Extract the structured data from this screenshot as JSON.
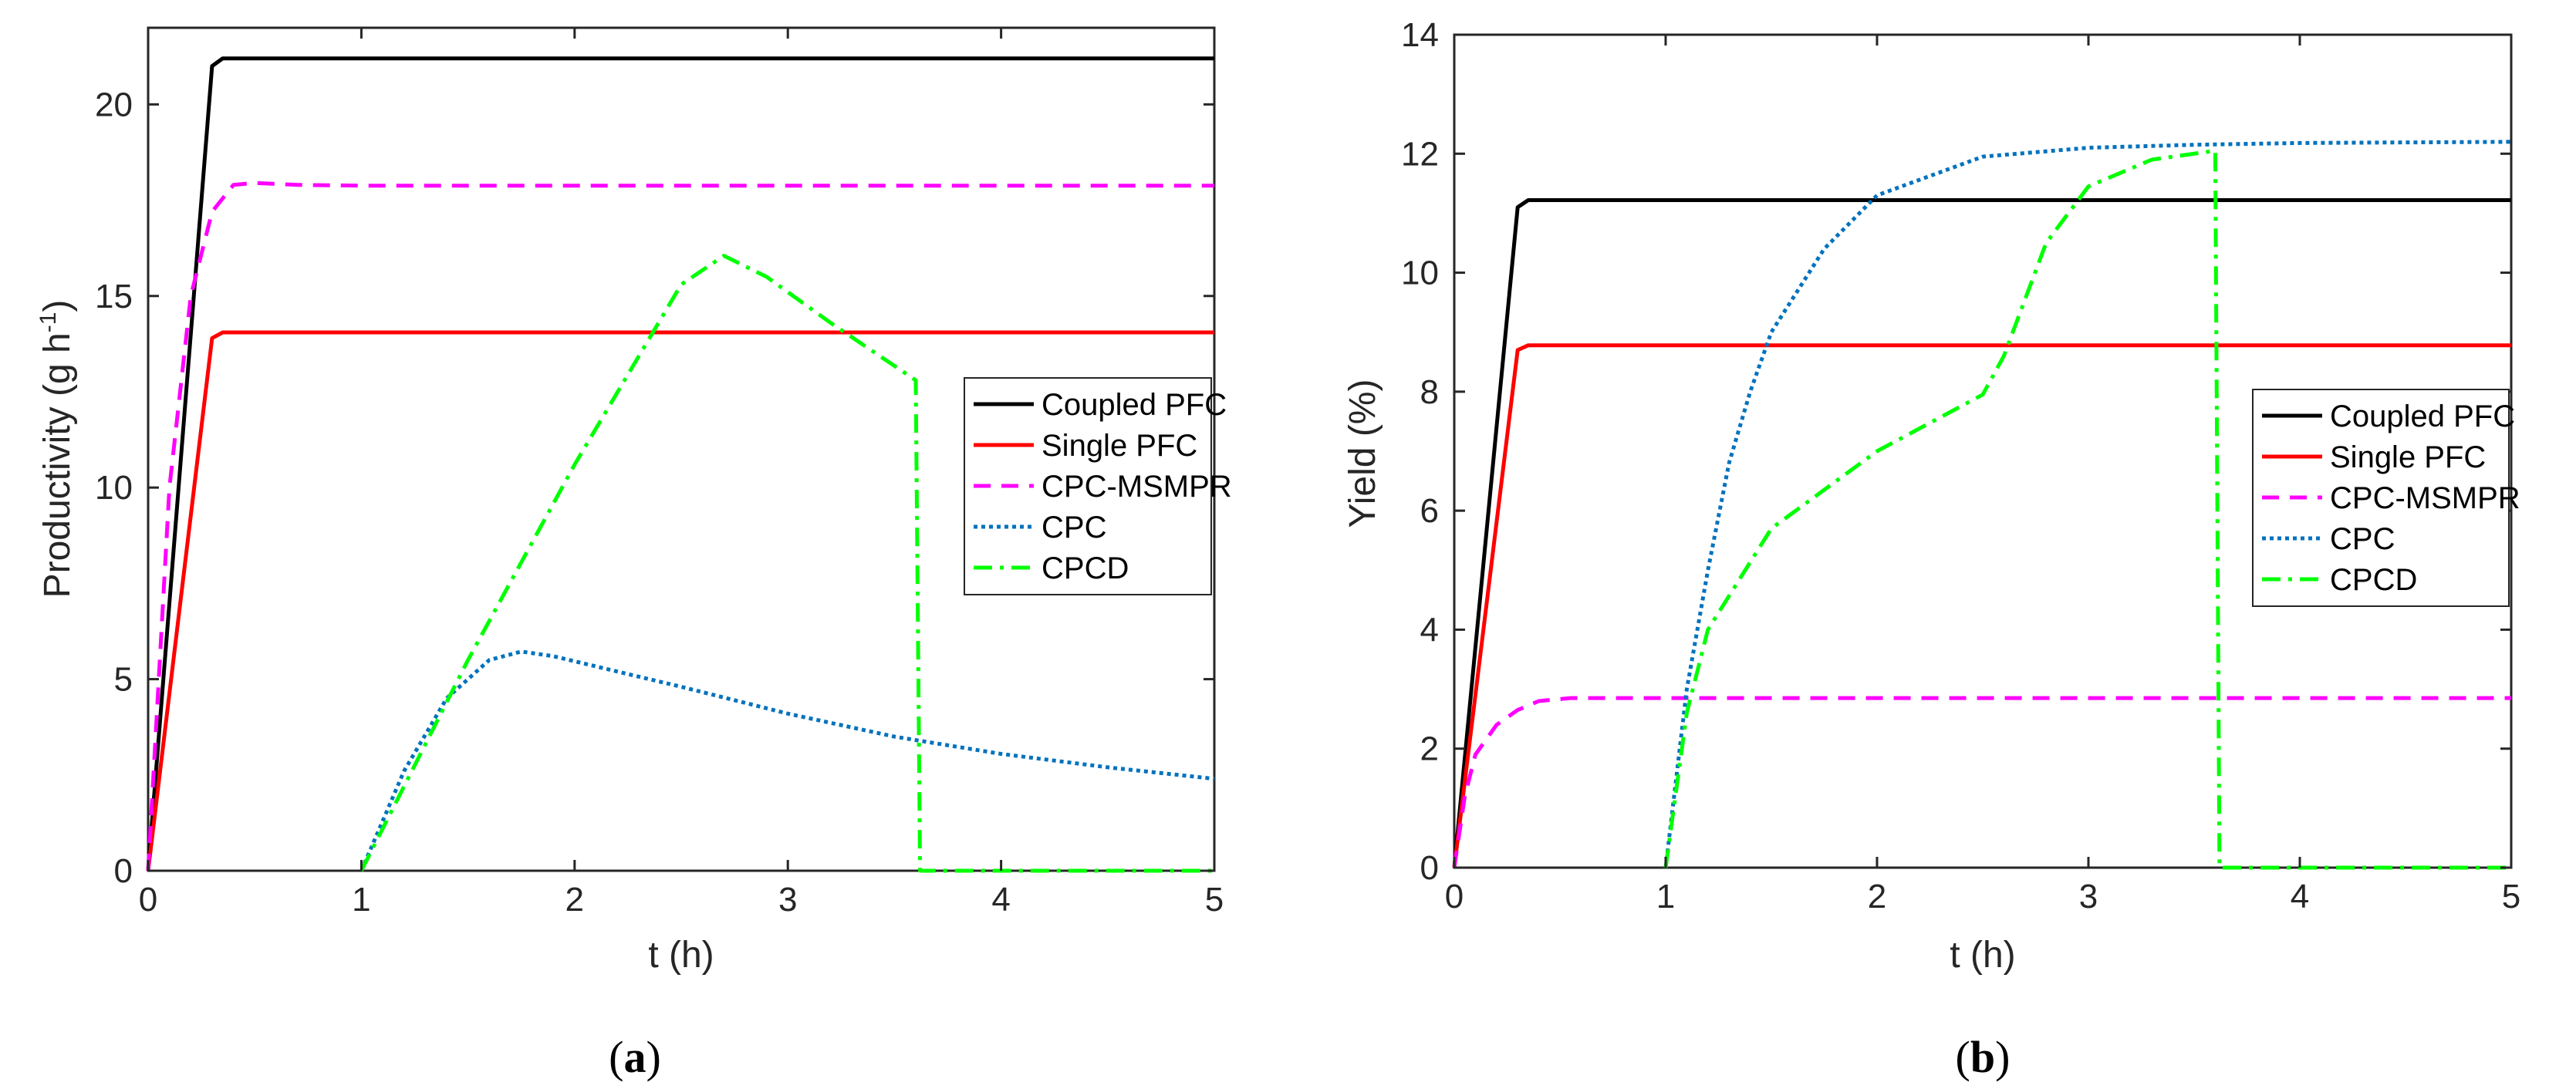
{
  "chart_data": [
    {
      "type": "line",
      "caption_letter": "a",
      "caption_open": "(",
      "caption_close": ")",
      "xlabel": "t (h)",
      "ylabel_main": "Productivity (g h",
      "ylabel_sup": "-1",
      "ylabel_close": ")",
      "xlim": [
        0,
        5
      ],
      "ylim": [
        0,
        22
      ],
      "xticks": [
        0,
        1,
        2,
        3,
        4,
        5
      ],
      "yticks": [
        0,
        5,
        10,
        15,
        20
      ],
      "legend_position": "right",
      "series": [
        {
          "name": "Coupled PFC",
          "color": "#000000",
          "style": "solid",
          "x": [
            0,
            0.3,
            0.35,
            5
          ],
          "y": [
            0,
            21,
            21.2,
            21.2
          ]
        },
        {
          "name": "Single PFC",
          "color": "#ff0000",
          "style": "solid",
          "x": [
            0,
            0.3,
            0.35,
            5
          ],
          "y": [
            0,
            13.9,
            14.05,
            14.05
          ]
        },
        {
          "name": "CPC-MSMPR",
          "color": "#ff00ff",
          "style": "dashed",
          "x": [
            0,
            0.05,
            0.1,
            0.2,
            0.3,
            0.4,
            0.5,
            0.7,
            1.0,
            2,
            3,
            4,
            5
          ],
          "y": [
            0,
            5,
            10,
            15,
            17.2,
            17.9,
            17.95,
            17.9,
            17.88,
            17.88,
            17.88,
            17.88,
            17.88
          ]
        },
        {
          "name": "CPC",
          "color": "#0072bd",
          "style": "dotted",
          "x": [
            1,
            1.2,
            1.4,
            1.6,
            1.75,
            1.9,
            2.2,
            2.5,
            3.0,
            3.5,
            4.0,
            4.5,
            5.0
          ],
          "y": [
            0,
            2.6,
            4.5,
            5.5,
            5.72,
            5.6,
            5.2,
            4.8,
            4.1,
            3.5,
            3.05,
            2.7,
            2.4
          ]
        },
        {
          "name": "CPCD",
          "color": "#00ff00",
          "style": "dashdot",
          "x": [
            1,
            1.5,
            2.0,
            2.5,
            2.7,
            2.9,
            3.2,
            3.6,
            3.62,
            3.64,
            5
          ],
          "y": [
            0,
            5.5,
            10.6,
            15.3,
            16.05,
            15.5,
            14.3,
            12.8,
            0,
            0,
            0
          ]
        }
      ]
    },
    {
      "type": "line",
      "caption_letter": "b",
      "caption_open": "(",
      "caption_close": ")",
      "xlabel": "t (h)",
      "ylabel_main": "Yield (%)",
      "xlim": [
        0,
        5
      ],
      "ylim": [
        0,
        14
      ],
      "xticks": [
        0,
        1,
        2,
        3,
        4,
        5
      ],
      "yticks": [
        0,
        2,
        4,
        6,
        8,
        10,
        12,
        14
      ],
      "legend_position": "right",
      "series": [
        {
          "name": "Coupled PFC",
          "color": "#000000",
          "style": "solid",
          "x": [
            0,
            0.3,
            0.35,
            5
          ],
          "y": [
            0,
            11.1,
            11.22,
            11.22
          ]
        },
        {
          "name": "Single PFC",
          "color": "#ff0000",
          "style": "solid",
          "x": [
            0,
            0.3,
            0.35,
            5
          ],
          "y": [
            0,
            8.7,
            8.78,
            8.78
          ]
        },
        {
          "name": "CPC-MSMPR",
          "color": "#ff00ff",
          "style": "dashed",
          "x": [
            0,
            0.05,
            0.1,
            0.2,
            0.3,
            0.4,
            0.55,
            1,
            5
          ],
          "y": [
            0,
            1.2,
            1.9,
            2.4,
            2.65,
            2.8,
            2.85,
            2.85,
            2.85
          ]
        },
        {
          "name": "CPC",
          "color": "#0072bd",
          "style": "dotted",
          "x": [
            1,
            1.1,
            1.2,
            1.3,
            1.4,
            1.5,
            1.75,
            2.0,
            2.5,
            3.0,
            3.5,
            4.0,
            5.0
          ],
          "y": [
            0,
            3.0,
            5.0,
            6.8,
            8.0,
            9.0,
            10.4,
            11.3,
            11.95,
            12.1,
            12.15,
            12.18,
            12.2
          ]
        },
        {
          "name": "CPCD",
          "color": "#00ff00",
          "style": "dashdot",
          "x": [
            1,
            1.1,
            1.2,
            1.5,
            2.0,
            2.5,
            2.6,
            2.8,
            3.0,
            3.3,
            3.6,
            3.62,
            3.64,
            5
          ],
          "y": [
            0,
            2.6,
            4.0,
            5.7,
            7.0,
            7.95,
            8.6,
            10.5,
            11.45,
            11.9,
            12.05,
            0,
            0,
            0
          ]
        }
      ]
    }
  ]
}
